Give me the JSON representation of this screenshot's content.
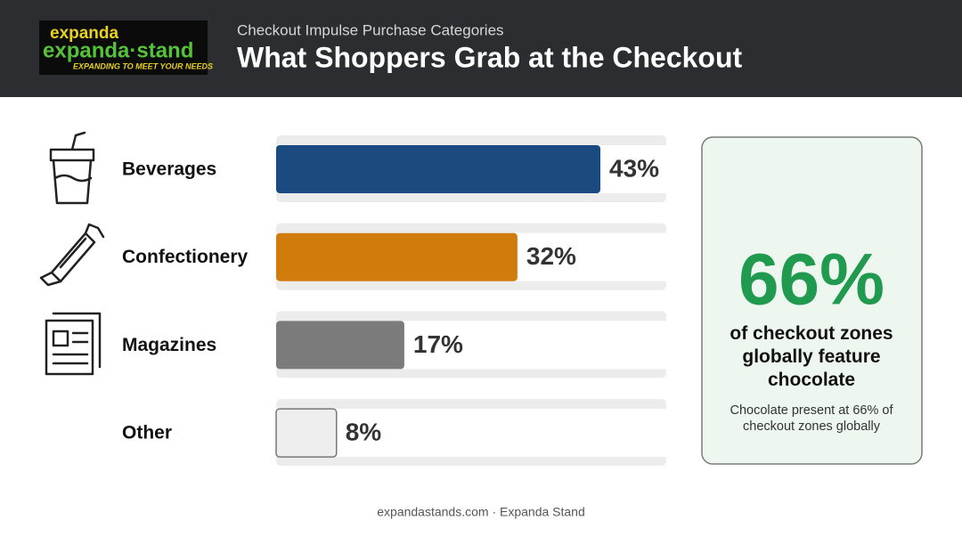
{
  "logo": {
    "line1": "expanda",
    "line2": "expanda·stand",
    "tagline": "EXPANDING TO MEET YOUR NEEDS"
  },
  "chart_data": {
    "type": "bar",
    "orientation": "horizontal",
    "subtitle": "Checkout Impulse Purchase Categories",
    "title": "What Shoppers Grab at the Checkout",
    "categories": [
      "Beverages",
      "Confectionery",
      "Magazines",
      "Other"
    ],
    "values": [
      43,
      32,
      17,
      8
    ],
    "value_labels": [
      "43%",
      "32%",
      "17%",
      "8%"
    ],
    "colors": [
      "#1b4a80",
      "#d17b0d",
      "#7b7b7b",
      "#eeeeee"
    ]
  },
  "callout": {
    "stat": "66%",
    "headline": "of checkout zones globally feature chocolate",
    "note": "Chocolate present at 66% of checkout zones globally"
  },
  "footer": "expandastands.com · Expanda Stand"
}
